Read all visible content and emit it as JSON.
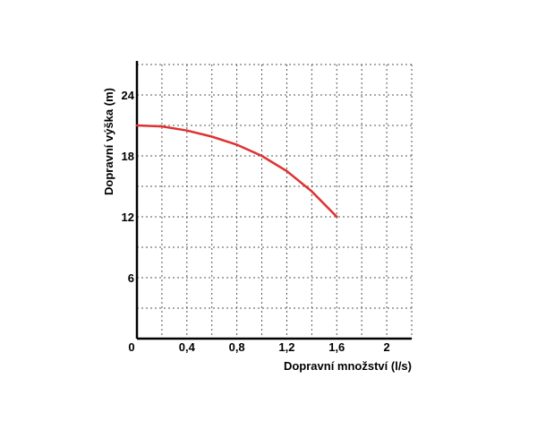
{
  "chart_data": {
    "type": "line",
    "xlabel": "Dopravní množství (l/s)",
    "ylabel": "Dopravní výška (m)",
    "xlim": [
      0,
      2.2
    ],
    "ylim": [
      0,
      27
    ],
    "x_ticks": [
      0,
      0.4,
      0.8,
      1.2,
      1.6,
      2
    ],
    "x_tick_labels": [
      "0",
      "0,4",
      "0,8",
      "1,2",
      "1,6",
      "2"
    ],
    "y_ticks": [
      6,
      12,
      18,
      24
    ],
    "y_tick_labels": [
      "6",
      "12",
      "18",
      "24"
    ],
    "grid": true,
    "series": [
      {
        "color": "#e03131",
        "x": [
          0,
          0.2,
          0.4,
          0.6,
          0.8,
          1.0,
          1.2,
          1.4,
          1.6
        ],
        "y": [
          21.0,
          20.9,
          20.5,
          19.9,
          19.1,
          18.0,
          16.5,
          14.5,
          12.0
        ]
      }
    ]
  }
}
